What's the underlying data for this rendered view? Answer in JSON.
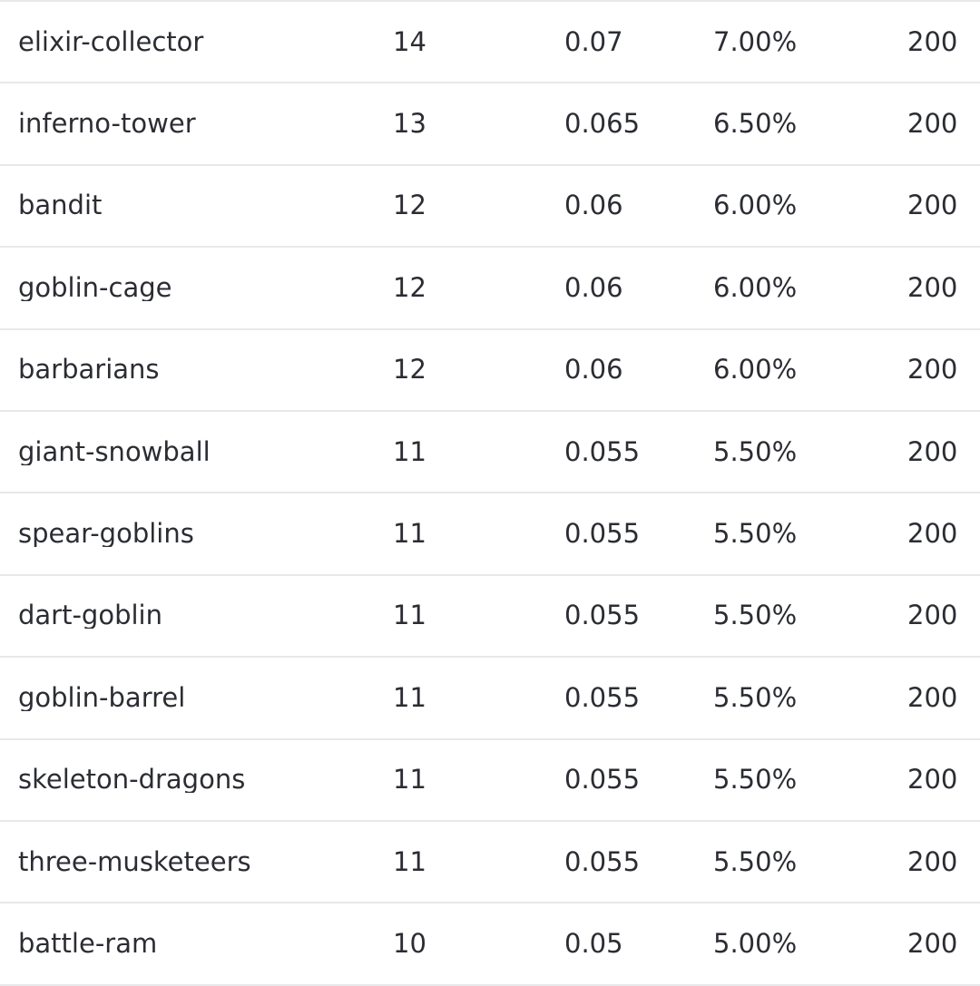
{
  "colors": {
    "background": "#ffffff",
    "text": "#2b2d33",
    "separator": "#e8e8ea"
  },
  "table": {
    "columns": [
      {
        "key": "card-name"
      },
      {
        "key": "count"
      },
      {
        "key": "rate"
      },
      {
        "key": "percent"
      },
      {
        "key": "total"
      }
    ],
    "rows": [
      [
        "elixir-collector",
        "14",
        "0.07",
        "7.00%",
        "200"
      ],
      [
        "inferno-tower",
        "13",
        "0.065",
        "6.50%",
        "200"
      ],
      [
        "bandit",
        "12",
        "0.06",
        "6.00%",
        "200"
      ],
      [
        "goblin-cage",
        "12",
        "0.06",
        "6.00%",
        "200"
      ],
      [
        "barbarians",
        "12",
        "0.06",
        "6.00%",
        "200"
      ],
      [
        "giant-snowball",
        "11",
        "0.055",
        "5.50%",
        "200"
      ],
      [
        "spear-goblins",
        "11",
        "0.055",
        "5.50%",
        "200"
      ],
      [
        "dart-goblin",
        "11",
        "0.055",
        "5.50%",
        "200"
      ],
      [
        "goblin-barrel",
        "11",
        "0.055",
        "5.50%",
        "200"
      ],
      [
        "skeleton-dragons",
        "11",
        "0.055",
        "5.50%",
        "200"
      ],
      [
        "three-musketeers",
        "11",
        "0.055",
        "5.50%",
        "200"
      ],
      [
        "battle-ram",
        "10",
        "0.05",
        "5.00%",
        "200"
      ]
    ]
  }
}
